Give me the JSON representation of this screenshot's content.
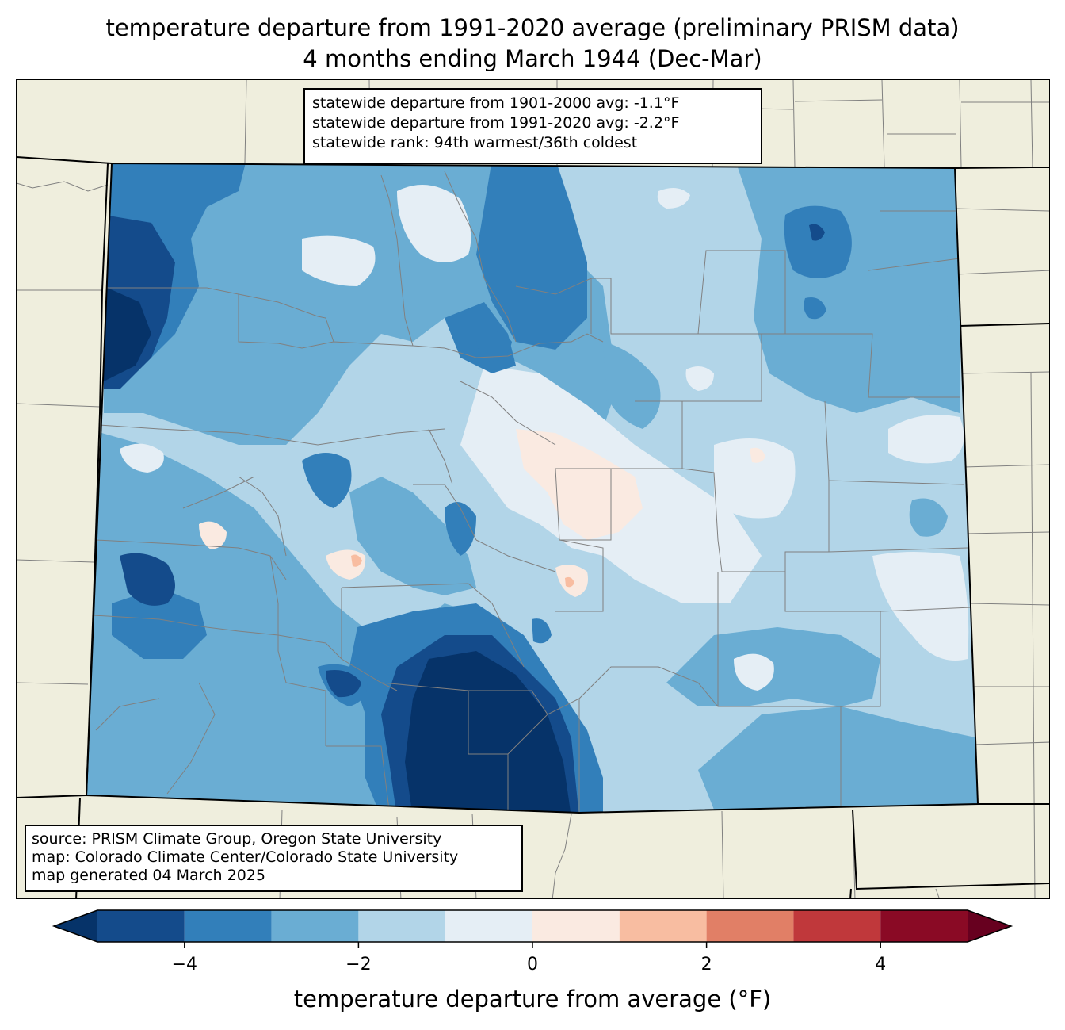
{
  "title": {
    "line1": "temperature departure from 1991-2020 average (preliminary PRISM data)",
    "line2": "4 months ending March 1944 (Dec-Mar)"
  },
  "stats": {
    "line1": "statewide departure from 1901-2000 avg: -1.1°F",
    "line2": "statewide departure from 1991-2020 avg: -2.2°F",
    "line3": "statewide rank: 94th warmest/36th coldest"
  },
  "credits": {
    "line1": "source: PRISM Climate Group, Oregon State University",
    "line2": "map: Colorado Climate Center/Colorado State University",
    "line3": "map generated 04 March 2025"
  },
  "colorbar": {
    "title": "temperature departure from average (°F)",
    "ticks": [
      -4,
      -2,
      0,
      2,
      4
    ],
    "tick_labels": [
      "−4",
      "−2",
      "0",
      "2",
      "4"
    ],
    "range": [
      -5,
      5
    ],
    "bins": [
      {
        "from": -5,
        "to": -4,
        "color": "#144b8b"
      },
      {
        "from": -4,
        "to": -3,
        "color": "#327fba"
      },
      {
        "from": -3,
        "to": -2,
        "color": "#6aadd3"
      },
      {
        "from": -2,
        "to": -1,
        "color": "#b2d5e8"
      },
      {
        "from": -1,
        "to": 0,
        "color": "#e5eef5"
      },
      {
        "from": 0,
        "to": 1,
        "color": "#faeae1"
      },
      {
        "from": 1,
        "to": 2,
        "color": "#f8bda1"
      },
      {
        "from": 2,
        "to": 3,
        "color": "#e17f66"
      },
      {
        "from": 3,
        "to": 4,
        "color": "#c0383b"
      },
      {
        "from": 4,
        "to": 5,
        "color": "#8a0a25"
      }
    ],
    "under_color": "#063369",
    "over_color": "#67001f"
  },
  "map": {
    "background_color": "#efeedd",
    "border_color": "#000000",
    "county_line_color": "#808080"
  }
}
